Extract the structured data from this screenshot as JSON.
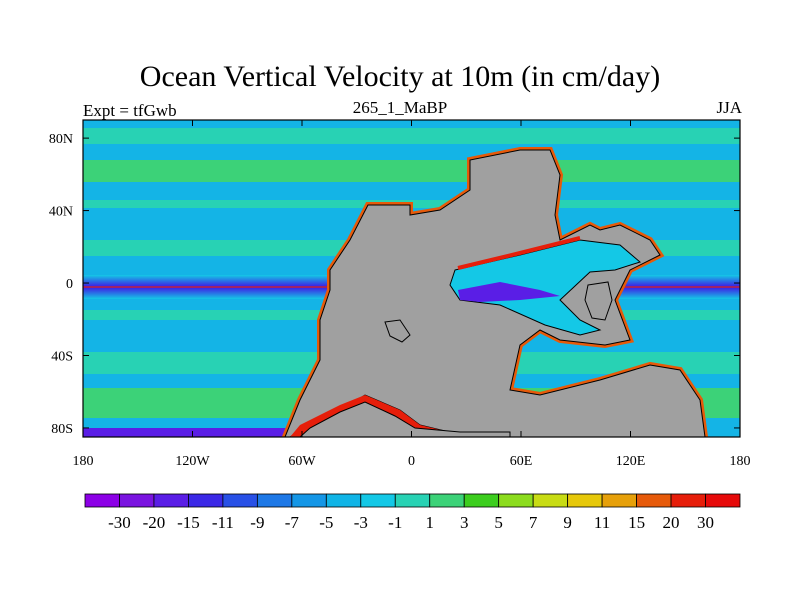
{
  "chart_data": {
    "type": "heatmap",
    "title": "Ocean Vertical Velocity at 10m (in cm/day)",
    "left_string": "Expt = tfGwb",
    "center_string": "265_1_MaBP",
    "right_string": "JJA",
    "x_range": [
      -180,
      180
    ],
    "y_range": [
      -85,
      90
    ],
    "x_ticks": [
      {
        "value": -180,
        "label": "180"
      },
      {
        "value": -120,
        "label": "120W"
      },
      {
        "value": -60,
        "label": "60W"
      },
      {
        "value": 0,
        "label": "0"
      },
      {
        "value": 60,
        "label": "60E"
      },
      {
        "value": 120,
        "label": "120E"
      },
      {
        "value": 180,
        "label": "180"
      }
    ],
    "y_ticks": [
      {
        "value": 80,
        "label": "80N"
      },
      {
        "value": 40,
        "label": "40N"
      },
      {
        "value": 0,
        "label": "0"
      },
      {
        "value": -40,
        "label": "40S"
      },
      {
        "value": -80,
        "label": "80S"
      }
    ],
    "land_color": "#a0a0a0",
    "levels": [
      "-30",
      "-20",
      "-15",
      "-11",
      "-9",
      "-7",
      "-5",
      "-3",
      "-1",
      "1",
      "3",
      "5",
      "7",
      "9",
      "11",
      "15",
      "20",
      "30"
    ],
    "colors": [
      "#8c00e6",
      "#7a14e0",
      "#5a1ee6",
      "#3b28e6",
      "#2850e6",
      "#1e78e6",
      "#1496e6",
      "#10b4e6",
      "#14c8e6",
      "#28d2b4",
      "#3cd278",
      "#3ccd1e",
      "#8cdc1e",
      "#c8dc14",
      "#e6c80a",
      "#e6a00a",
      "#e65a0a",
      "#e61e0a",
      "#e60a0a"
    ]
  }
}
